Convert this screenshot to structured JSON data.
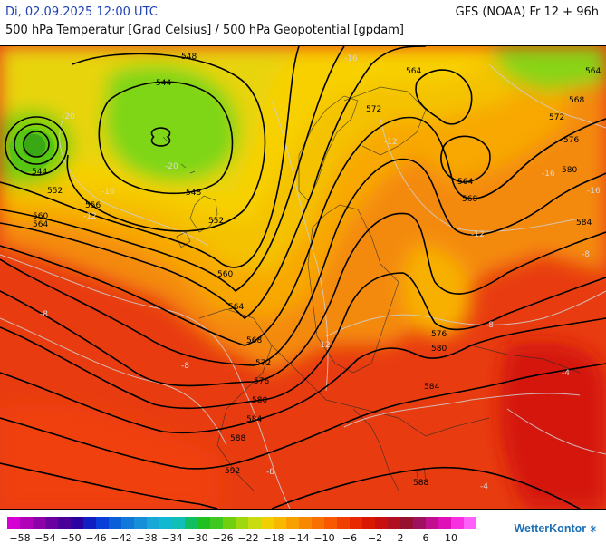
{
  "header": {
    "datetime": "Di, 02.09.2025 12:00 UTC",
    "model_run": "GFS (NOAA) Fr 12 + 96h",
    "subtitle": "500 hPa Temperatur [Grad Celsius] / 500 hPa Geopotential [gpdam]"
  },
  "brand": {
    "name": "WetterKontor"
  },
  "colors": {
    "text_blue": "#1c3fb5",
    "contour": "#000000",
    "isotherm": "#c8c8c8"
  },
  "legend": {
    "labels": [
      "−58",
      "−54",
      "−50",
      "−46",
      "−42",
      "−38",
      "−34",
      "−30",
      "−26",
      "−22",
      "−18",
      "−14",
      "−10",
      "−6",
      "−2",
      "2",
      "6",
      "10"
    ],
    "colors": [
      "#d400d4",
      "#b000b8",
      "#8d00a8",
      "#6a00a0",
      "#4a0098",
      "#2a00a0",
      "#1020c0",
      "#0a3ed8",
      "#0a5ed8",
      "#0f78d8",
      "#1590d8",
      "#18a8d8",
      "#10b8d0",
      "#10c0b8",
      "#10c060",
      "#20c020",
      "#40c820",
      "#70d010",
      "#a0d810",
      "#c8dc10",
      "#f0d000",
      "#f8b800",
      "#f8a000",
      "#f88800",
      "#f87000",
      "#f85800",
      "#f04000",
      "#e82800",
      "#d81800",
      "#c81010",
      "#b01020",
      "#981030",
      "#a01060",
      "#c01090",
      "#e010b8",
      "#f830e0",
      "#ff60f8"
    ]
  },
  "map": {
    "geopotential_labels": [
      {
        "text": "548",
        "id": "g548a"
      },
      {
        "text": "544",
        "id": "g544a"
      },
      {
        "text": "544",
        "id": "g544b"
      },
      {
        "text": "548",
        "id": "g548b"
      },
      {
        "text": "552",
        "id": "g552a"
      },
      {
        "text": "552",
        "id": "g552b"
      },
      {
        "text": "556",
        "id": "g556"
      },
      {
        "text": "560",
        "id": "g560a"
      },
      {
        "text": "564",
        "id": "g564a"
      },
      {
        "text": "560",
        "id": "g560b"
      },
      {
        "text": "564",
        "id": "g564b"
      },
      {
        "text": "568",
        "id": "g568a"
      },
      {
        "text": "572",
        "id": "g572a"
      },
      {
        "text": "576",
        "id": "g576a"
      },
      {
        "text": "580",
        "id": "g580a"
      },
      {
        "text": "584",
        "id": "g584a"
      },
      {
        "text": "588",
        "id": "g588a"
      },
      {
        "text": "592",
        "id": "g592"
      },
      {
        "text": "564",
        "id": "g564c"
      },
      {
        "text": "572",
        "id": "g572b"
      },
      {
        "text": "564",
        "id": "g564d"
      },
      {
        "text": "568",
        "id": "g568b"
      },
      {
        "text": "568",
        "id": "g568c"
      },
      {
        "text": "572",
        "id": "g572c"
      },
      {
        "text": "576",
        "id": "g576b"
      },
      {
        "text": "580",
        "id": "g580b"
      },
      {
        "text": "584",
        "id": "g584b"
      },
      {
        "text": "576",
        "id": "g576c"
      },
      {
        "text": "580",
        "id": "g580c"
      },
      {
        "text": "584",
        "id": "g584c"
      },
      {
        "text": "588",
        "id": "g588b"
      },
      {
        "text": "564",
        "id": "g564e"
      }
    ],
    "isotherm_labels": [
      {
        "text": "-20",
        "id": "t1"
      },
      {
        "text": "-16",
        "id": "t2"
      },
      {
        "text": "-12",
        "id": "t3"
      },
      {
        "text": "-8",
        "id": "t4"
      },
      {
        "text": "-12",
        "id": "t5"
      },
      {
        "text": "-8",
        "id": "t6"
      },
      {
        "text": "-12",
        "id": "t7"
      },
      {
        "text": "-8",
        "id": "t8"
      },
      {
        "text": "-8",
        "id": "t9"
      },
      {
        "text": "-4",
        "id": "t10"
      },
      {
        "text": "-4",
        "id": "t11"
      },
      {
        "text": "-8",
        "id": "t12"
      },
      {
        "text": "-12",
        "id": "t13"
      },
      {
        "text": "-16",
        "id": "t14"
      },
      {
        "text": "-20",
        "id": "t15"
      },
      {
        "text": "-16",
        "id": "t16"
      },
      {
        "text": "-16",
        "id": "t17"
      }
    ]
  }
}
